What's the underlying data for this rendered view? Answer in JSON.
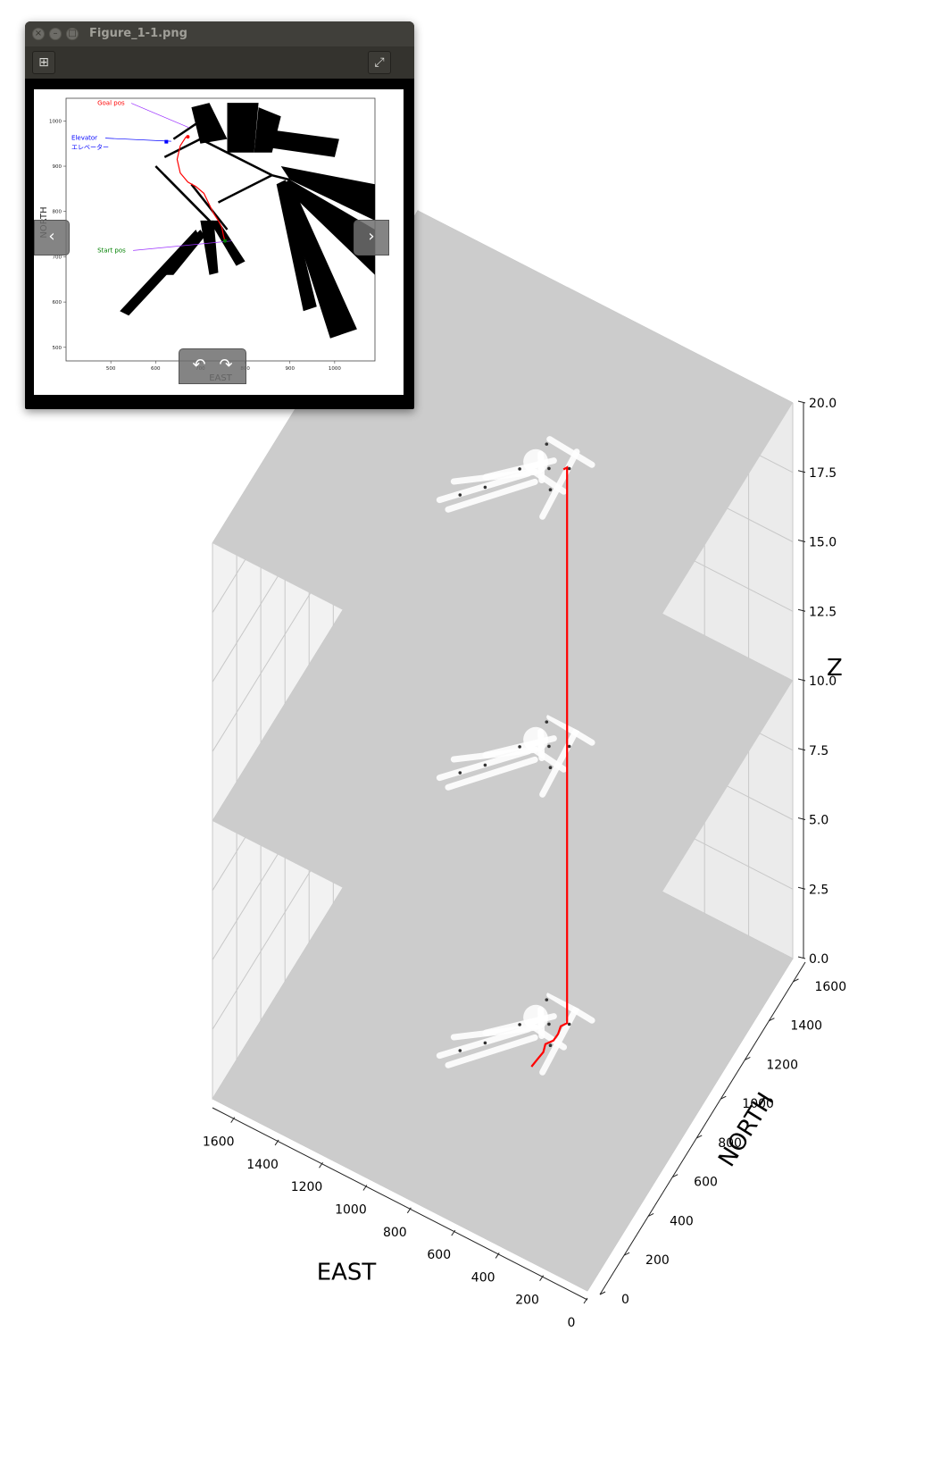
{
  "window": {
    "title": "Figure_1-1.png",
    "close_glyph": "×",
    "minimize_glyph": "–",
    "maximize_glyph": "□",
    "toolbar": {
      "left_icon": "add-square-icon",
      "left_glyph": "⊞",
      "right_icon": "fullscreen-icon",
      "right_glyph": "⤢"
    },
    "nav": {
      "prev_glyph": "‹",
      "next_glyph": "›",
      "rotate_left_glyph": "↶",
      "rotate_right_glyph": "↷"
    }
  },
  "chart_data": [
    {
      "type": "scatter",
      "description_ref": "2D occupancy map with planned path",
      "xlabel": "EAST",
      "ylabel": "NORTH",
      "xticks": [
        500,
        600,
        700,
        800,
        900,
        1000
      ],
      "yticks": [
        500,
        600,
        700,
        800,
        900,
        1000
      ],
      "xlim": [
        400,
        1090
      ],
      "ylim": [
        470,
        1050
      ],
      "annotations": [
        {
          "text": "Goal pos",
          "color": "#ff0000",
          "x": 675,
          "y": 990
        },
        {
          "text": "Elevator",
          "color": "#0000ff",
          "x": 640,
          "y": 960
        },
        {
          "text": "エレベーター",
          "color": "#0000ff",
          "x": 640,
          "y": 960
        },
        {
          "text": "Start pos",
          "color": "#008000",
          "x": 770,
          "y": 735
        }
      ],
      "path_color": "#ff0000",
      "path": [
        [
          668,
          965
        ],
        [
          655,
          945
        ],
        [
          648,
          915
        ],
        [
          655,
          885
        ],
        [
          672,
          865
        ],
        [
          690,
          855
        ],
        [
          708,
          840
        ],
        [
          720,
          815
        ],
        [
          730,
          795
        ],
        [
          740,
          780
        ],
        [
          748,
          765
        ],
        [
          752,
          745
        ],
        [
          755,
          735
        ]
      ]
    },
    {
      "type": "line",
      "xlabel": "EAST",
      "ylabel": "NORTH",
      "zlabel": "Z",
      "xticks": [
        0,
        200,
        400,
        600,
        800,
        1000,
        1200,
        1400,
        1600
      ],
      "yticks": [
        0,
        200,
        400,
        600,
        800,
        1000,
        1200,
        1400,
        1600
      ],
      "zticks": [
        "0.0",
        "2.5",
        "5.0",
        "7.5",
        "10.0",
        "12.5",
        "15.0",
        "17.5",
        "20.0"
      ],
      "xlim": [
        0,
        1700
      ],
      "ylim": [
        0,
        1700
      ],
      "zlim": [
        0,
        20
      ],
      "floor_levels": [
        0,
        10,
        20
      ],
      "floor_color": "#cccccc",
      "path_color": "#ff0000",
      "path": [
        {
          "x": 670,
          "y": 760,
          "z": 0
        },
        {
          "x": 665,
          "y": 800,
          "z": 0
        },
        {
          "x": 660,
          "y": 840,
          "z": 0
        },
        {
          "x": 670,
          "y": 875,
          "z": 0
        },
        {
          "x": 650,
          "y": 905,
          "z": 0
        },
        {
          "x": 648,
          "y": 940,
          "z": 0
        },
        {
          "x": 655,
          "y": 975,
          "z": 0
        },
        {
          "x": 640,
          "y": 1000,
          "z": 0
        },
        {
          "x": 640,
          "y": 1000,
          "z": 20
        },
        {
          "x": 648,
          "y": 985,
          "z": 20
        }
      ]
    }
  ]
}
